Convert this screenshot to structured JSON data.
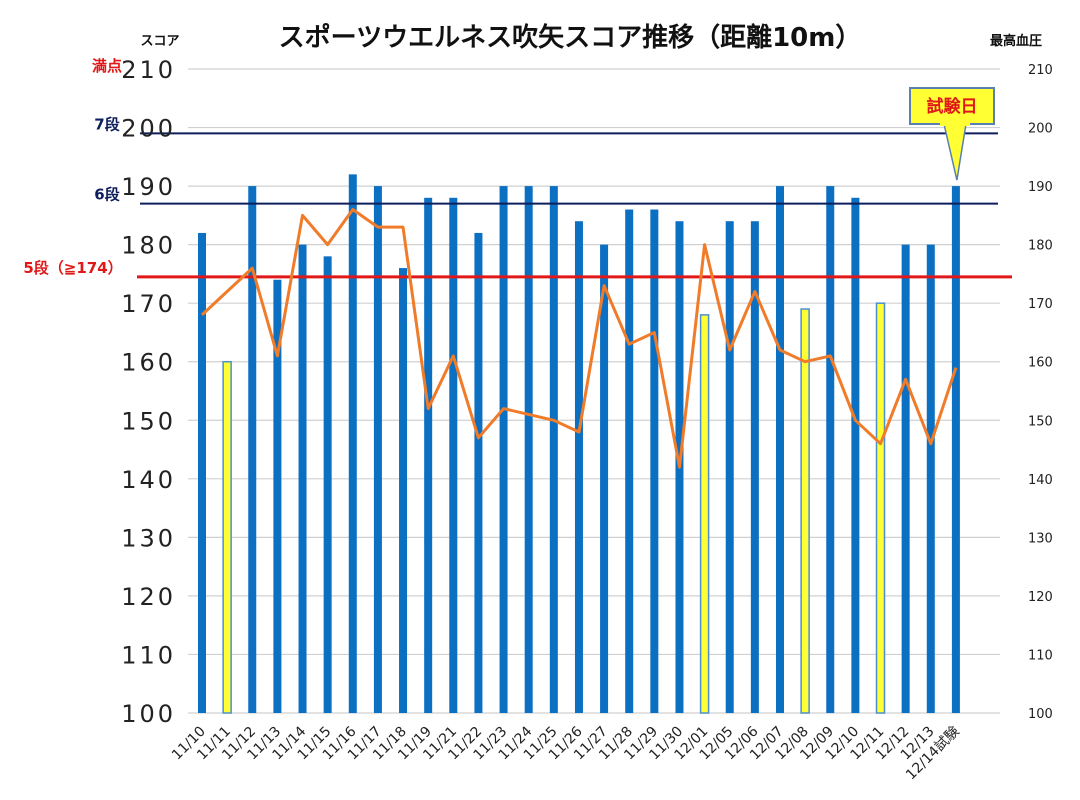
{
  "chart_data": {
    "type": "bar",
    "title": "スポーツウエルネス吹矢スコア推移（距離10m）",
    "ylabel_left": "スコア",
    "ylabel_right": "最高血圧",
    "ylim": [
      100,
      210
    ],
    "y2lim": [
      100,
      210
    ],
    "yticks": [
      100,
      110,
      120,
      130,
      140,
      150,
      160,
      170,
      180,
      190,
      200,
      210
    ],
    "grid": true,
    "categories": [
      "11/10",
      "11/11",
      "11/12",
      "11/13",
      "11/14",
      "11/15",
      "11/16",
      "11/17",
      "11/18",
      "11/19",
      "11/21",
      "11/22",
      "11/23",
      "11/24",
      "11/25",
      "11/26",
      "11/27",
      "11/28",
      "11/29",
      "11/30",
      "12/01",
      "12/05",
      "12/06",
      "12/07",
      "12/08",
      "12/09",
      "12/10",
      "12/11",
      "12/12",
      "12/13",
      "12/14試験"
    ],
    "series": [
      {
        "kind": "bar",
        "axis": "left",
        "values": [
          182,
          160,
          190,
          174,
          180,
          178,
          192,
          190,
          176,
          188,
          188,
          182,
          190,
          190,
          190,
          184,
          180,
          186,
          186,
          184,
          168,
          184,
          184,
          190,
          169,
          190,
          188,
          170,
          180,
          180,
          190
        ],
        "highlight_indices": [
          1,
          20,
          24,
          27
        ],
        "color": "#0b6fc2",
        "highlight_color": "#ffff33"
      },
      {
        "kind": "line",
        "axis": "right",
        "values": [
          168,
          172,
          176,
          161,
          185,
          180,
          186,
          183,
          183,
          152,
          161,
          147,
          152,
          151,
          150,
          148,
          173,
          163,
          165,
          142,
          180,
          162,
          172,
          162,
          160,
          161,
          150,
          146,
          157,
          146,
          159
        ],
        "color": "#f07c2a"
      }
    ],
    "reference_lines": [
      {
        "label": "満点",
        "value": 210,
        "color": "#e01818",
        "drawn": false
      },
      {
        "label": "7段",
        "value": 199,
        "color": "#0d1f5c",
        "drawn": true
      },
      {
        "label": "6段",
        "value": 187,
        "color": "#0d1f5c",
        "drawn": true
      },
      {
        "label": "5段（≧174）",
        "value": 174.5,
        "color": "#e01818",
        "drawn": true
      }
    ],
    "callout": {
      "text": "試験日",
      "index": 30,
      "fill": "#ffff33",
      "text_color": "#e01818",
      "border": "#5a80b0"
    }
  }
}
